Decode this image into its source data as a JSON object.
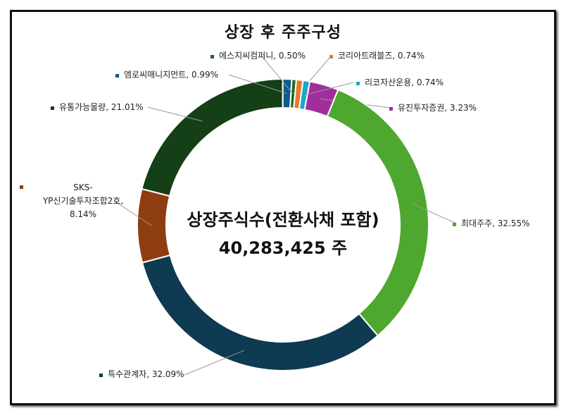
{
  "chart_data": {
    "type": "pie",
    "title": "상장 후 주주구성",
    "center_label": "상장주식수(전환사채 포함)",
    "center_value": "40,283,425 주",
    "slices": [
      {
        "label": "유진투자증권",
        "value": 3.23,
        "display": "유진투자증권, 3.23%",
        "color": "#A02F9C"
      },
      {
        "label": "최대주주",
        "value": 32.55,
        "display": "최대주주, 32.55%",
        "color": "#4EA72E"
      },
      {
        "label": "특수관계자",
        "value": 32.09,
        "display": "특수관계자, 32.09%",
        "color": "#0E3A52"
      },
      {
        "label": "SKS-YP신기술투자조합2호",
        "value": 8.14,
        "display_lines": [
          "SKS-",
          "YP신기술투자조합2호,",
          "8.14%"
        ],
        "color": "#8E3D10"
      },
      {
        "label": "유통가능물량",
        "value": 21.01,
        "display": "유통가능물량, 21.01%",
        "color": "#143F17"
      },
      {
        "label": "엠로씨매니지먼트",
        "value": 0.99,
        "display": "엠로씨매니지먼트, 0.99%",
        "color": "#0F5A8C"
      },
      {
        "label": "에스지씨컴퍼니",
        "value": 0.5,
        "display": "에스지씨컴퍼니, 0.50%",
        "color": "#1E6B2A"
      },
      {
        "label": "코리아트래블즈",
        "value": 0.74,
        "display": "코리아트래블즈, 0.74%",
        "color": "#E87A2E"
      },
      {
        "label": "리코자산운용",
        "value": 0.74,
        "display": "리코자산운용, 0.74%",
        "color": "#1AA7C9"
      }
    ]
  }
}
